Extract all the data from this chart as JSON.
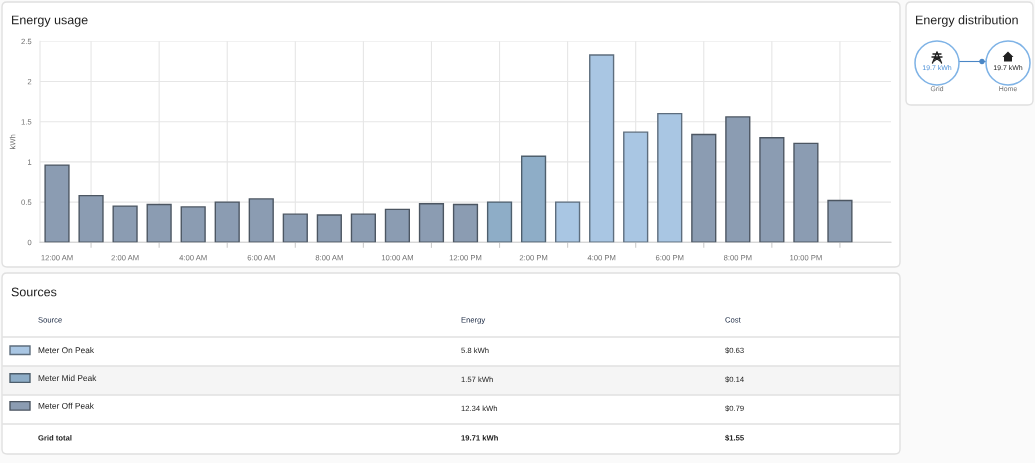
{
  "chart_data": [
    {
      "type": "bar",
      "title": "Energy usage",
      "ylabel": "kWh",
      "stacked": true,
      "grid": true,
      "legend": "bottom",
      "x": [
        0,
        1,
        2,
        3,
        4,
        5,
        6,
        7,
        8,
        9,
        10,
        11,
        12,
        13,
        14,
        15,
        16,
        17,
        18,
        19,
        20,
        21,
        22,
        23
      ],
      "xlim": [
        -0.5,
        24.5
      ],
      "xticks": [
        {
          "value": 0,
          "label": "12:00 AM"
        },
        {
          "value": 1,
          "label": null
        },
        {
          "value": 2,
          "label": "2:00 AM"
        },
        {
          "value": 3,
          "label": null
        },
        {
          "value": 4,
          "label": "4:00 AM"
        },
        {
          "value": 5,
          "label": null
        },
        {
          "value": 6,
          "label": "6:00 AM"
        },
        {
          "value": 7,
          "label": null
        },
        {
          "value": 8,
          "label": "8:00 AM"
        },
        {
          "value": 9,
          "label": null
        },
        {
          "value": 10,
          "label": "10:00 AM"
        },
        {
          "value": 11,
          "label": null
        },
        {
          "value": 12,
          "label": "12:00 PM"
        },
        {
          "value": 13,
          "label": null
        },
        {
          "value": 14,
          "label": "2:00 PM"
        },
        {
          "value": 15,
          "label": null
        },
        {
          "value": 16,
          "label": "4:00 PM"
        },
        {
          "value": 17,
          "label": null
        },
        {
          "value": 18,
          "label": "6:00 PM"
        },
        {
          "value": 19,
          "label": null
        },
        {
          "value": 20,
          "label": "8:00 PM"
        },
        {
          "value": 21,
          "label": null
        },
        {
          "value": 22,
          "label": "10:00 PM"
        },
        {
          "value": 23,
          "label": null
        }
      ],
      "ylim": [
        0,
        2.5
      ],
      "yticks": [
        0,
        0.5,
        1,
        1.5,
        2,
        2.5
      ],
      "series": [
        {
          "name": "Meter On Peak",
          "color": "#a9c6e3",
          "values": [
            null,
            null,
            null,
            null,
            null,
            null,
            null,
            null,
            null,
            null,
            null,
            null,
            null,
            null,
            null,
            0.5,
            2.33,
            1.37,
            1.6,
            null,
            null,
            null,
            null,
            null
          ]
        },
        {
          "name": "Meter Mid Peak",
          "color": "#8eadc7",
          "values": [
            null,
            null,
            null,
            null,
            null,
            null,
            null,
            null,
            null,
            null,
            null,
            null,
            null,
            0.5,
            1.07,
            null,
            null,
            null,
            null,
            null,
            null,
            null,
            null,
            null
          ]
        },
        {
          "name": "Meter Off Peak",
          "color": "#8b9cb2",
          "values": [
            0.96,
            0.58,
            0.45,
            0.47,
            0.44,
            0.5,
            0.54,
            0.35,
            0.34,
            0.35,
            0.41,
            0.48,
            0.47,
            null,
            null,
            null,
            null,
            null,
            null,
            1.34,
            1.56,
            1.3,
            1.23,
            0.52
          ]
        }
      ]
    },
    {
      "type": "other",
      "title": "Sources",
      "annotations": [
        "Source",
        "Energy",
        "Cost",
        "5.8 kWh",
        "$0.63",
        "1.57 kWh",
        "$0.14",
        "12.34 kWh",
        "$0.79",
        "Grid total",
        "19.71 kWh",
        "$1.55"
      ]
    },
    {
      "type": "other",
      "title": "Energy distribution",
      "annotations": [
        "19.7 kWh",
        "Grid",
        "19.7 kWh",
        "Home"
      ]
    }
  ]
}
